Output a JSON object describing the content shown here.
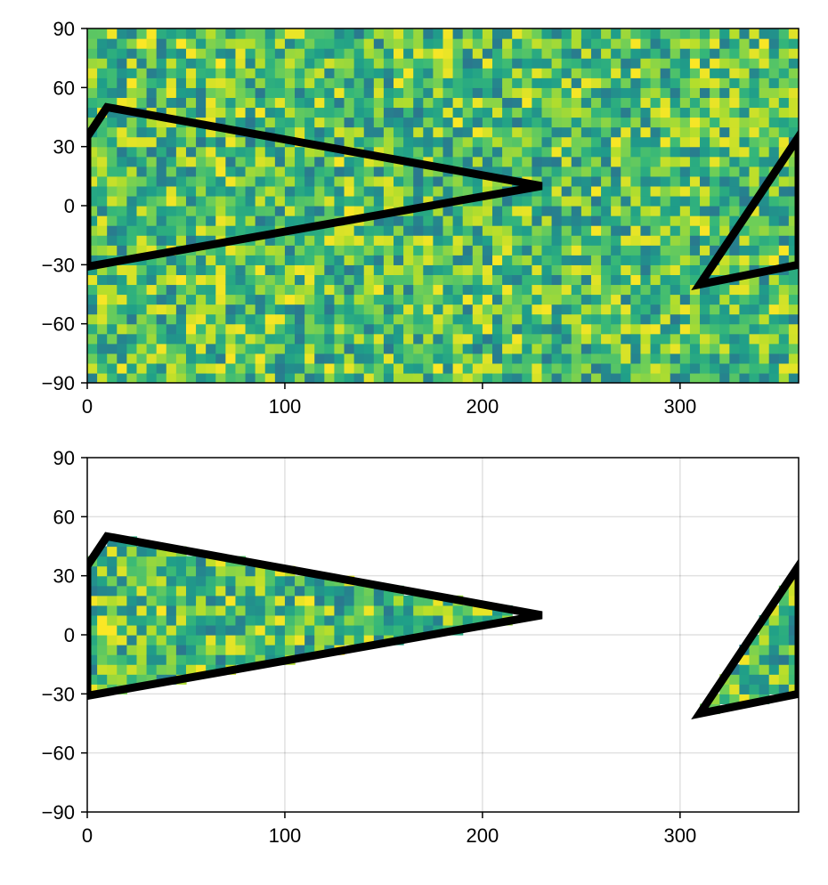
{
  "chart_data": [
    {
      "type": "heatmap",
      "xlim": [
        0,
        360
      ],
      "ylim": [
        -90,
        90
      ],
      "x_ticks": [
        0,
        100,
        200,
        300
      ],
      "x_tick_labels": [
        "0",
        "100",
        "200",
        "300"
      ],
      "y_ticks": [
        -90,
        -60,
        -30,
        0,
        30,
        60,
        90
      ],
      "y_tick_labels": [
        "−90",
        "−60",
        "−30",
        "0",
        "30",
        "60",
        "90"
      ],
      "grid": false,
      "colormap": "viridis",
      "color_range": [
        0.4,
        1.0
      ],
      "cell_size_deg": 5,
      "masked_to_polygon": false,
      "overlay_polygon": {
        "color": "#000000",
        "paths": [
          [
            [
              0,
              35
            ],
            [
              10,
              50
            ],
            [
              230,
              10
            ],
            [
              0,
              -31
            ]
          ],
          [
            [
              360,
              35
            ],
            [
              310,
              -40
            ],
            [
              360,
              -30
            ]
          ]
        ]
      }
    },
    {
      "type": "heatmap",
      "xlim": [
        0,
        360
      ],
      "ylim": [
        -90,
        90
      ],
      "x_ticks": [
        0,
        100,
        200,
        300
      ],
      "x_tick_labels": [
        "0",
        "100",
        "200",
        "300"
      ],
      "y_ticks": [
        -90,
        -60,
        -30,
        0,
        30,
        60,
        90
      ],
      "y_tick_labels": [
        "−90",
        "−60",
        "−30",
        "0",
        "30",
        "60",
        "90"
      ],
      "grid": true,
      "colormap": "viridis",
      "color_range": [
        0.4,
        1.0
      ],
      "cell_size_deg": 5,
      "masked_to_polygon": true,
      "overlay_polygon": {
        "color": "#000000",
        "paths": [
          [
            [
              0,
              35
            ],
            [
              10,
              50
            ],
            [
              230,
              10
            ],
            [
              0,
              -31
            ]
          ],
          [
            [
              360,
              35
            ],
            [
              310,
              -40
            ],
            [
              360,
              -30
            ]
          ]
        ]
      }
    }
  ]
}
